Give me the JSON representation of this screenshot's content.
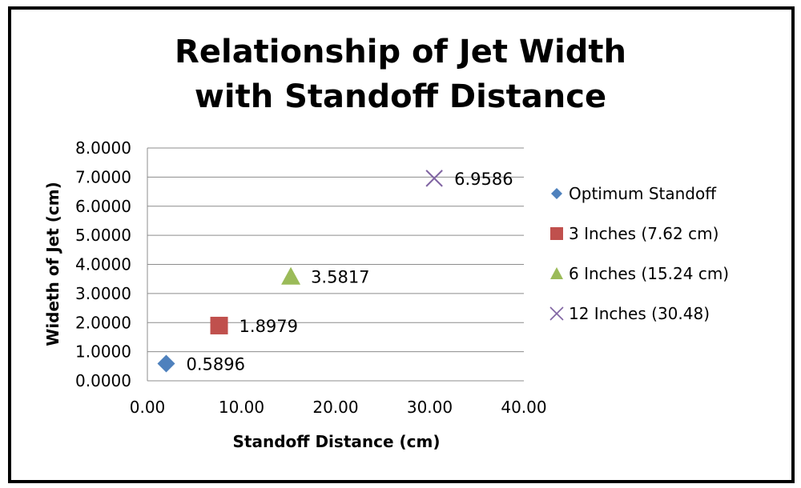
{
  "chart_data": {
    "type": "scatter",
    "title_lines": [
      "Relationship of Jet Width",
      "with Standoff Distance"
    ],
    "xlabel": "Standoff Distance (cm)",
    "ylabel": "Wideth of Jet (cm)",
    "xlim": [
      0,
      40
    ],
    "ylim": [
      0,
      8
    ],
    "x_ticks": [
      0,
      10,
      20,
      30,
      40
    ],
    "y_ticks": [
      0,
      1,
      2,
      3,
      4,
      5,
      6,
      7,
      8
    ],
    "x_tick_labels": [
      "0.00",
      "10.00",
      "20.00",
      "30.00",
      "40.00"
    ],
    "y_tick_labels": [
      "0.0000",
      "1.0000",
      "2.0000",
      "3.0000",
      "4.0000",
      "5.0000",
      "6.0000",
      "7.0000",
      "8.0000"
    ],
    "grid": true,
    "legend_position": "right",
    "series": [
      {
        "name": "Optimum Standoff",
        "marker": "diamond",
        "color": "#4F81BD",
        "x": 2,
        "y": 0.5896,
        "label": "0.5896"
      },
      {
        "name": "3 Inches (7.62 cm)",
        "marker": "square",
        "color": "#C0504D",
        "x": 7.62,
        "y": 1.8979,
        "label": "1.8979"
      },
      {
        "name": "6 Inches (15.24 cm)",
        "marker": "triangle",
        "color": "#9BBB59",
        "x": 15.24,
        "y": 3.5817,
        "label": "3.5817"
      },
      {
        "name": "12 Inches (30.48)",
        "marker": "x",
        "color": "#8064A2",
        "x": 30.48,
        "y": 6.9586,
        "label": "6.9586"
      }
    ]
  }
}
